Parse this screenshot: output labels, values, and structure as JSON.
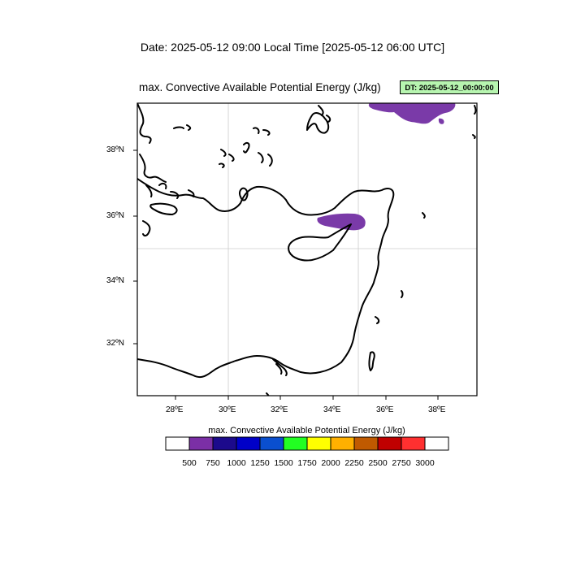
{
  "header": {
    "date_title": "Date: 2025-05-12  09:00 Local Time [2025-05-12  06:00 UTC]",
    "plot_title": "max. Convective Available Potential Energy   (J/kg)",
    "dt_badge": "DT: 2025-05-12_00:00:00"
  },
  "map": {
    "region": "Eastern Mediterranean",
    "lon_ticks": [
      "28ºE",
      "30ºE",
      "32ºE",
      "34ºE",
      "36ºE",
      "38ºE"
    ],
    "lat_ticks": [
      "38ºN",
      "36ºN",
      "34ºN",
      "32ºN"
    ],
    "gridlines": "lon 30E, 35E; lat 35N",
    "fill_color": "#7a3aa8"
  },
  "colorbar": {
    "title": "max. Convective Available Potential Energy  (J/kg)",
    "labels": [
      "500",
      "750",
      "1000",
      "1250",
      "1500",
      "1750",
      "2000",
      "2250",
      "2500",
      "2750",
      "3000"
    ],
    "colors": [
      "#ffffff",
      "#7b2fa6",
      "#1c0a8c",
      "#0000c8",
      "#0a4fcf",
      "#22ff22",
      "#ffff00",
      "#ffb000",
      "#c05a00",
      "#c00000",
      "#ff3030",
      "#ffffff"
    ]
  }
}
